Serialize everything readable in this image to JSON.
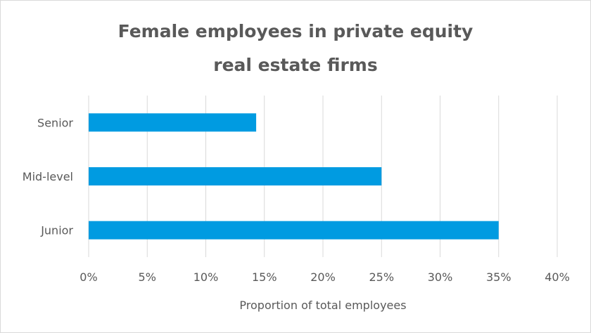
{
  "chart_data": {
    "type": "bar",
    "orientation": "horizontal",
    "title_lines": [
      "Female employees in private equity",
      "real estate firms"
    ],
    "categories": [
      "Senior",
      "Mid-level",
      "Junior"
    ],
    "values": [
      14.3,
      25,
      35
    ],
    "xlabel": "Proportion of total employees",
    "ylabel": "",
    "xlim": [
      0,
      40
    ],
    "xticks": [
      0,
      5,
      10,
      15,
      20,
      25,
      30,
      35,
      40
    ],
    "xtick_labels": [
      "0%",
      "5%",
      "10%",
      "15%",
      "20%",
      "25%",
      "30%",
      "35%",
      "40%"
    ],
    "grid": "vertical",
    "legend": "none",
    "colors": {
      "bar": "#009be1",
      "grid": "#d9d9d9",
      "text": "#595959"
    }
  }
}
